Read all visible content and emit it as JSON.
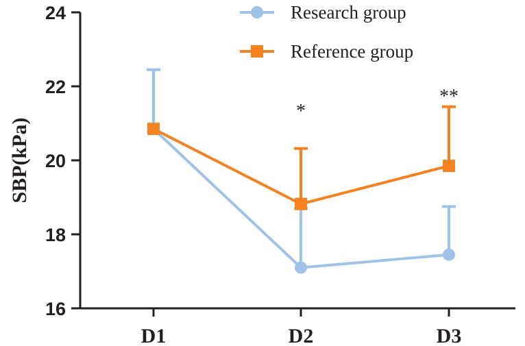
{
  "chart_data": {
    "type": "line",
    "title": "",
    "xlabel": "",
    "ylabel": "SBP(kPa)",
    "ylim": [
      16,
      24
    ],
    "yticks": [
      "16",
      "18",
      "20",
      "22",
      "24"
    ],
    "categories": [
      "D1",
      "D2",
      "D3"
    ],
    "series": [
      {
        "name": "Research group",
        "color": "#9fc2e7",
        "marker": "circle",
        "values": [
          20.85,
          17.1,
          17.45
        ],
        "errors": [
          1.6,
          1.6,
          1.3
        ]
      },
      {
        "name": "Reference group",
        "color": "#f58220",
        "marker": "square",
        "values": [
          20.85,
          18.82,
          19.85
        ],
        "errors": [
          0.0,
          1.5,
          1.6
        ]
      }
    ],
    "annotations": [
      {
        "category": "D2",
        "text": "*",
        "y": 21.5
      },
      {
        "category": "D3",
        "text": "**",
        "y": 21.9
      }
    ],
    "legend_position": "top-right"
  }
}
